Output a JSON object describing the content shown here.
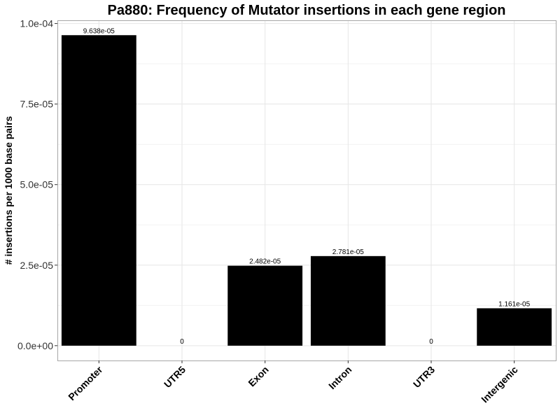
{
  "chart_data": {
    "type": "bar",
    "title": "Pa880: Frequency of Mutator insertions in each gene region",
    "xlabel": "",
    "ylabel": "# insertions per 1000 base pairs",
    "categories": [
      "Promoter",
      "UTR5",
      "Exon",
      "Intron",
      "UTR3",
      "Intergenic"
    ],
    "values": [
      9.638e-05,
      0,
      2.482e-05,
      2.781e-05,
      0,
      1.161e-05
    ],
    "data_labels": [
      "9.638e-05",
      "0",
      "2.482e-05",
      "2.781e-05",
      "0",
      "1.161e-05"
    ],
    "yticks": [
      0,
      2.5e-05,
      5e-05,
      7.5e-05,
      0.0001
    ],
    "ytick_labels": [
      "0.0e+00",
      "2.5e-05",
      "5.0e-05",
      "7.5e-05",
      "1.0e-04"
    ],
    "ylim": [
      -4.6e-06,
      0.000101
    ],
    "grid": true,
    "bar_color": "#000000"
  }
}
